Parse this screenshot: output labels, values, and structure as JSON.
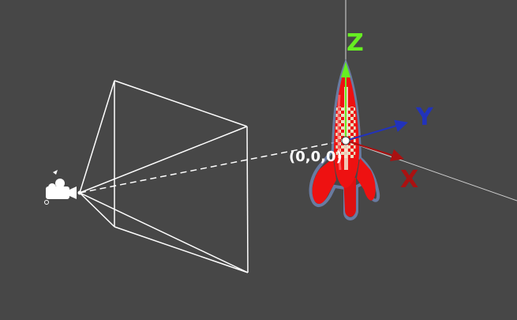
{
  "viewport": {
    "background": "#474747"
  },
  "axes": {
    "z": {
      "label": "Z",
      "color": "#66ee22"
    },
    "y": {
      "label": "Y",
      "color": "#2233bb"
    },
    "x": {
      "label": "X",
      "color": "#aa1111"
    }
  },
  "origin": {
    "label": "(0,0,0)"
  },
  "camera": {
    "icon": "movie-camera-icon",
    "frustum_color": "#ffffff"
  },
  "rocket": {
    "icon": "rocket-model",
    "body_color": "#ee1111",
    "checker_color": "#e8e0c0"
  }
}
